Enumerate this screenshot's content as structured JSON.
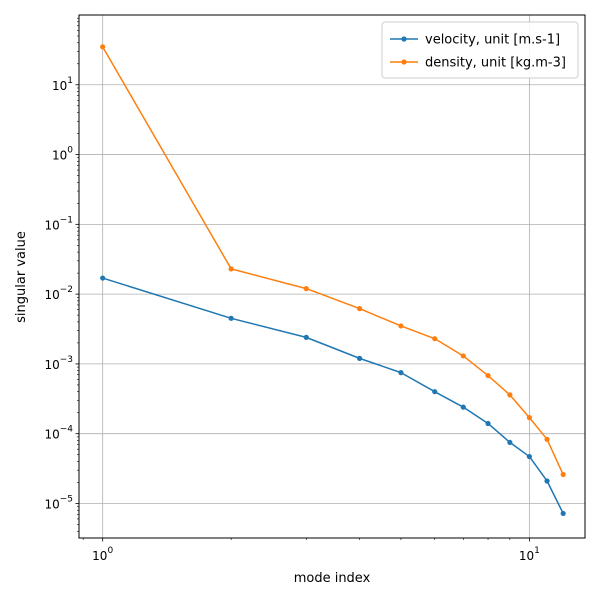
{
  "chart_data": {
    "type": "line",
    "title": "",
    "xlabel": "mode index",
    "ylabel": "singular value",
    "x_scale": "log",
    "y_scale": "log",
    "xlim": [
      0.88,
      13.5
    ],
    "ylim": [
      3.2e-06,
      100
    ],
    "grid": true,
    "legend_position": "top-right",
    "x_ticks": [
      {
        "value": 1,
        "base": "10",
        "exp": "0"
      },
      {
        "value": 10,
        "base": "10",
        "exp": "1"
      }
    ],
    "y_ticks": [
      {
        "value": 1e-05,
        "base": "10",
        "exp": "−5"
      },
      {
        "value": 0.0001,
        "base": "10",
        "exp": "−4"
      },
      {
        "value": 0.001,
        "base": "10",
        "exp": "−3"
      },
      {
        "value": 0.01,
        "base": "10",
        "exp": "−2"
      },
      {
        "value": 0.1,
        "base": "10",
        "exp": "−1"
      },
      {
        "value": 1,
        "base": "10",
        "exp": "0"
      },
      {
        "value": 10,
        "base": "10",
        "exp": "1"
      }
    ],
    "x": [
      1,
      2,
      3,
      4,
      5,
      6,
      7,
      8,
      9,
      10,
      11,
      12
    ],
    "series": [
      {
        "name": "velocity, unit [m.s-1]",
        "color": "#1f77b4",
        "values": [
          0.017,
          0.0045,
          0.0024,
          0.0012,
          0.00075,
          0.0004,
          0.00024,
          0.00014,
          7.5e-05,
          4.7e-05,
          2.1e-05,
          7.2e-06
        ]
      },
      {
        "name": "density, unit [kg.m-3]",
        "color": "#ff7f0e",
        "values": [
          35,
          0.023,
          0.012,
          0.0062,
          0.0035,
          0.0023,
          0.0013,
          0.00068,
          0.00036,
          0.00017,
          8.3e-05,
          2.6e-05
        ]
      }
    ]
  }
}
